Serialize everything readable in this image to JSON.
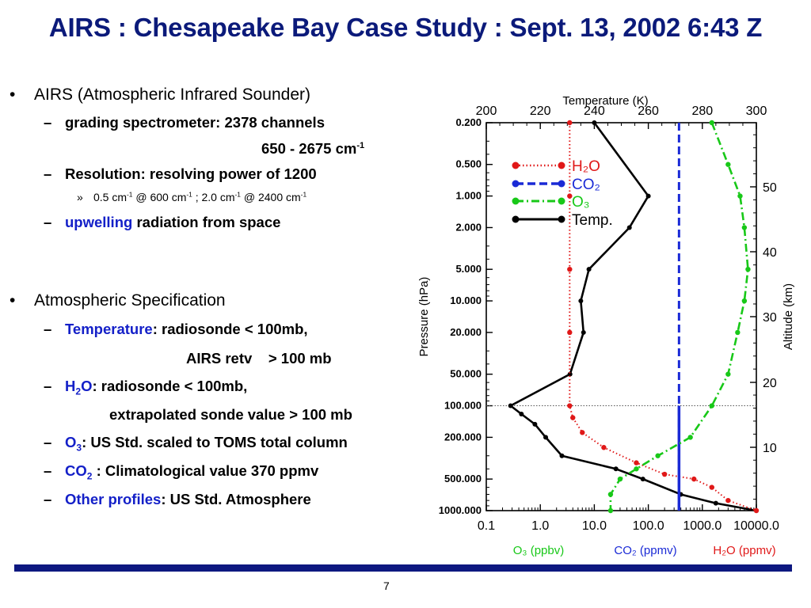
{
  "slide": {
    "title": "AIRS : Chesapeake Bay Case Study : Sept. 13, 2002 6:43 Z",
    "page_number": "7"
  },
  "bullets": {
    "b1": "AIRS (Atmospheric Infrared Sounder)",
    "b1_s1": "grading spectrometer: 2378 channels",
    "b1_s1_cont": "650 - 2675 cm",
    "b1_s1_cont_sup": "-1",
    "b1_s2": "Resolution: resolving power of 1200",
    "b1_s3_p1": "0.5 cm",
    "b1_s3_sup1": "-1",
    "b1_s3_p2": " @ 600 cm",
    "b1_s3_sup2": "-1",
    "b1_s3_p3": " ; 2.0 cm",
    "b1_s3_sup3": "-1",
    "b1_s3_p4": " @ 2400 cm",
    "b1_s3_sup4": "-1",
    "b1_s4_blue": "upwelling",
    "b1_s4_rest": " radiation from space",
    "b2": "Atmospheric Specification",
    "b2_s1_blue": "Temperature",
    "b2_s1_rest": ": radiosonde < 100mb,",
    "b2_s1_cont": "AIRS retv    > 100 mb",
    "b2_s2_blue_h": "H",
    "b2_s2_blue_sub": "2",
    "b2_s2_blue_o": "O",
    "b2_s2_rest": ": radiosonde < 100mb,",
    "b2_s2_cont": "extrapolated sonde value > 100 mb",
    "b2_s3_blue_o": "O",
    "b2_s3_blue_sub": "3",
    "b2_s3_rest": ": US Std. scaled to TOMS total column",
    "b2_s4_blue_co": "CO",
    "b2_s4_blue_sub": "2",
    "b2_s4_rest": " : Climatological value 370 ppmv",
    "b2_s5_blue": "Other profiles",
    "b2_s5_rest": ": US Std. Atmosphere",
    "bullet_glyph": "•",
    "dash_glyph": "–",
    "sub_glyph": "»"
  },
  "chart_data": {
    "type": "line",
    "top_axis_label": "Temperature (K)",
    "top_ticks": [
      "200",
      "220",
      "240",
      "260",
      "280",
      "300"
    ],
    "top_range": [
      200,
      300
    ],
    "left_axis_label": "Pressure (hPa)",
    "left_ticks": [
      "0.200",
      "0.500",
      "1.000",
      "2.000",
      "5.000",
      "10.000",
      "20.000",
      "50.000",
      "100.000",
      "200.000",
      "500.000",
      "1000.000"
    ],
    "left_tick_values": [
      0.2,
      0.5,
      1,
      2,
      5,
      10,
      20,
      50,
      100,
      200,
      500,
      1000
    ],
    "right_axis_label": "Altitude (km)",
    "right_ticks": [
      "10",
      "20",
      "30",
      "40",
      "50"
    ],
    "bottom_ticks": [
      "0.1",
      "1.0",
      "10.0",
      "100.0",
      "1000.0",
      "10000.0"
    ],
    "bottom_range_log": [
      0.1,
      10000
    ],
    "bottom_labels": [
      {
        "text": "O₃ (ppbv)",
        "color": "#18c818"
      },
      {
        "text": "CO₂ (ppmv)",
        "color": "#1a2ad6"
      },
      {
        "text": "H₂O (ppmv)",
        "color": "#e01818"
      }
    ],
    "legend": {
      "placement": "top-left",
      "items": [
        {
          "name": "H₂O",
          "color": "#e01818",
          "style": "dotted"
        },
        {
          "name": "CO₂",
          "color": "#1a2ad6",
          "style": "dashed"
        },
        {
          "name": "O₃",
          "color": "#18c818",
          "style": "dash-dot"
        },
        {
          "name": "Temp.",
          "color": "#000000",
          "style": "solid"
        }
      ]
    },
    "reference_line_hpa": 100,
    "series": [
      {
        "name": "Temp.",
        "axis": "temperature",
        "color": "#000000",
        "points": [
          [
            240,
            0.2
          ],
          [
            260,
            1
          ],
          [
            253,
            2
          ],
          [
            238,
            5
          ],
          [
            235,
            10
          ],
          [
            236,
            20
          ],
          [
            231,
            50
          ],
          [
            209,
            100
          ],
          [
            213,
            120
          ],
          [
            218,
            150
          ],
          [
            222,
            200
          ],
          [
            228,
            300
          ],
          [
            248,
            400
          ],
          [
            258,
            500
          ],
          [
            272,
            700
          ],
          [
            285,
            850
          ],
          [
            300,
            1000
          ]
        ]
      },
      {
        "name": "H₂O",
        "axis": "mixing",
        "color": "#e01818",
        "points": [
          [
            3.5,
            0.2
          ],
          [
            3.5,
            1
          ],
          [
            3.5,
            5
          ],
          [
            3.5,
            20
          ],
          [
            3.5,
            100
          ],
          [
            4,
            130
          ],
          [
            6,
            180
          ],
          [
            15,
            250
          ],
          [
            60,
            350
          ],
          [
            200,
            450
          ],
          [
            700,
            500
          ],
          [
            1500,
            600
          ],
          [
            3000,
            800
          ],
          [
            10000,
            1000
          ]
        ]
      },
      {
        "name": "CO₂",
        "axis": "mixing",
        "color": "#1a2ad6",
        "points": [
          [
            370,
            0.2
          ],
          [
            370,
            1000
          ]
        ]
      },
      {
        "name": "O₃",
        "axis": "mixing",
        "color": "#18c818",
        "points": [
          [
            1500,
            0.2
          ],
          [
            3000,
            0.5
          ],
          [
            5000,
            1
          ],
          [
            6000,
            2
          ],
          [
            7000,
            5
          ],
          [
            6000,
            10
          ],
          [
            4500,
            20
          ],
          [
            3000,
            50
          ],
          [
            1500,
            100
          ],
          [
            600,
            200
          ],
          [
            150,
            300
          ],
          [
            60,
            400
          ],
          [
            30,
            500
          ],
          [
            20,
            700
          ],
          [
            20,
            1000
          ]
        ]
      }
    ]
  }
}
